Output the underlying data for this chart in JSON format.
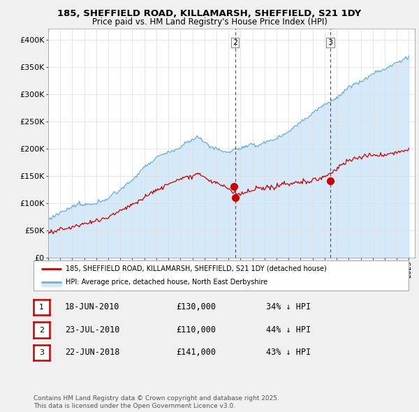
{
  "title1": "185, SHEFFIELD ROAD, KILLAMARSH, SHEFFIELD, S21 1DY",
  "title2": "Price paid vs. HM Land Registry's House Price Index (HPI)",
  "ylabel_ticks": [
    "£0",
    "£50K",
    "£100K",
    "£150K",
    "£200K",
    "£250K",
    "£300K",
    "£350K",
    "£400K"
  ],
  "ytick_values": [
    0,
    50000,
    100000,
    150000,
    200000,
    250000,
    300000,
    350000,
    400000
  ],
  "ylim": [
    0,
    420000
  ],
  "xlim_start": 1995.0,
  "xlim_end": 2025.5,
  "sale_dates_numeric": [
    2010.46,
    2010.55,
    2018.47
  ],
  "sale_prices": [
    130000,
    110000,
    141000
  ],
  "sale_labels": [
    "1",
    "2",
    "3"
  ],
  "vline_positions": [
    2010.55,
    2018.47
  ],
  "vline_labels": [
    "2",
    "3"
  ],
  "legend_line1": "185, SHEFFIELD ROAD, KILLAMARSH, SHEFFIELD, S21 1DY (detached house)",
  "legend_line2": "HPI: Average price, detached house, North East Derbyshire",
  "table_data": [
    {
      "num": "1",
      "date": "18-JUN-2010",
      "price": "£130,000",
      "pct": "34% ↓ HPI"
    },
    {
      "num": "2",
      "date": "23-JUL-2010",
      "price": "£110,000",
      "pct": "44% ↓ HPI"
    },
    {
      "num": "3",
      "date": "22-JUN-2018",
      "price": "£141,000",
      "pct": "43% ↓ HPI"
    }
  ],
  "footnote": "Contains HM Land Registry data © Crown copyright and database right 2025.\nThis data is licensed under the Open Government Licence v3.0.",
  "hpi_color": "#6baed6",
  "hpi_fill_color": "#d6e9f8",
  "sale_color": "#cc0000",
  "vline_color": "#cc0000",
  "bg_color": "#f0f0f0",
  "plot_bg": "#ffffff"
}
